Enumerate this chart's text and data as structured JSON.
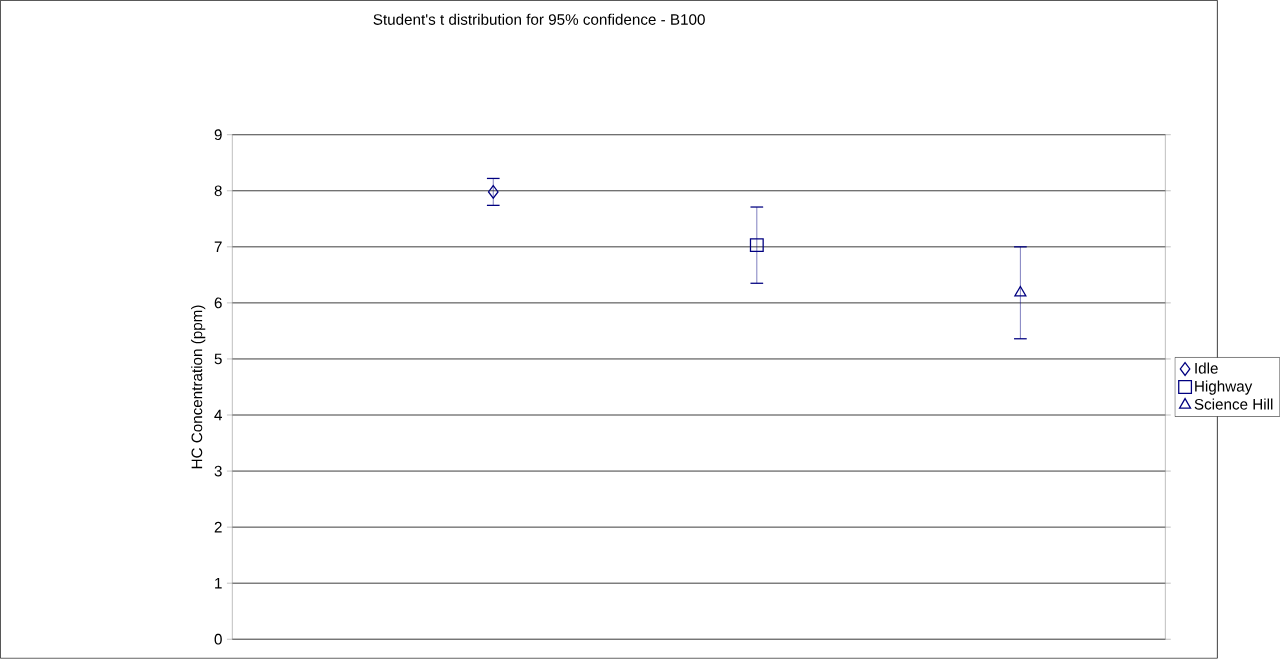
{
  "chart_data": {
    "type": "scatter",
    "title": "Student's t distribution for 95% confidence - B100",
    "ylabel": "HC Concentration (ppm)",
    "categories": [
      null,
      null,
      null
    ],
    "series": [
      {
        "name": "Idle",
        "color": "#000080",
        "marker": "diamond",
        "values": [
          7.98,
          null,
          null
        ],
        "errors": [
          0.24,
          null,
          null
        ]
      },
      {
        "name": "Highway",
        "color": "#000080",
        "marker": "square",
        "values": [
          null,
          7.03,
          null
        ],
        "errors": [
          null,
          0.68,
          null
        ]
      },
      {
        "name": "Science Hill",
        "color": "#000080",
        "marker": "triangle",
        "values": [
          null,
          null,
          6.18
        ],
        "errors": [
          null,
          null,
          0.82
        ]
      }
    ],
    "ylim": [
      0,
      9
    ],
    "yticks": [
      0,
      1,
      2,
      3,
      4,
      5,
      6,
      7,
      8,
      9
    ],
    "grid": "y",
    "legend": "right"
  }
}
